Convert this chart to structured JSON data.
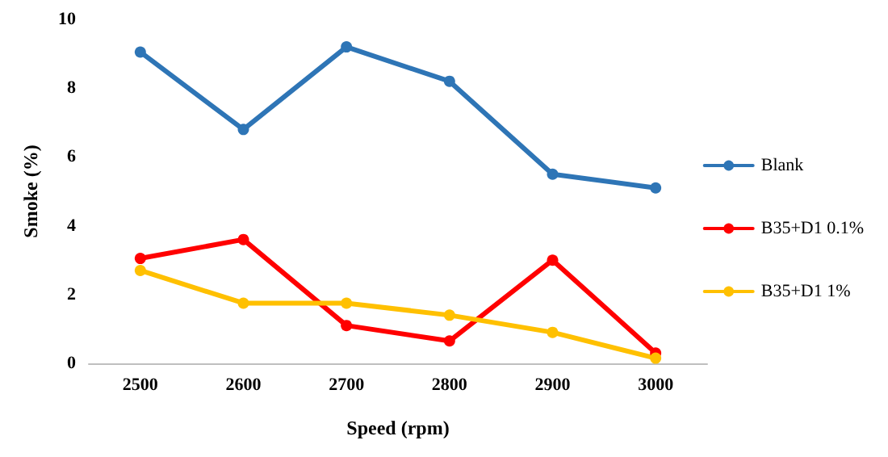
{
  "chart_data": {
    "type": "line",
    "xlabel": "Speed (rpm)",
    "ylabel": "Smoke (%)",
    "categories": [
      "2500",
      "2600",
      "2700",
      "2800",
      "2900",
      "3000"
    ],
    "series": [
      {
        "name": "Blank",
        "color": "#2e75b6",
        "values": [
          9.05,
          6.8,
          9.2,
          8.2,
          5.5,
          5.1
        ]
      },
      {
        "name": "B35+D1 0.1%",
        "color": "#ff0000",
        "values": [
          3.05,
          3.6,
          1.1,
          0.65,
          3.0,
          0.3
        ]
      },
      {
        "name": "B35+D1 1%",
        "color": "#ffc000",
        "values": [
          2.7,
          1.75,
          1.75,
          1.4,
          0.9,
          0.15
        ]
      }
    ],
    "ylim": [
      0,
      10
    ],
    "yticks": [
      0,
      2,
      4,
      6,
      8,
      10
    ],
    "grid": false,
    "legend": "right",
    "marker": "circle",
    "line_style": "solid"
  }
}
